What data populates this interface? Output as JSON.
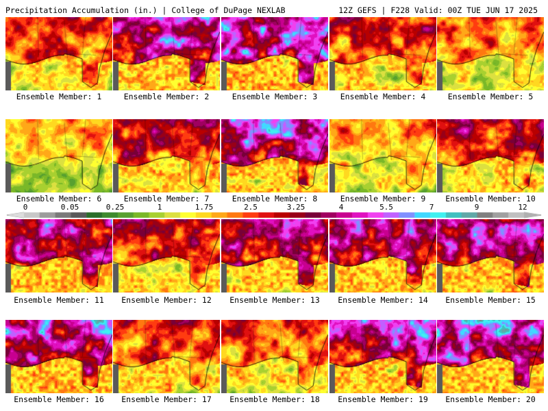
{
  "header": {
    "title": "Precipitation Accumulation (in.) | College of DuPage NEXLAB",
    "run_info": "12Z GEFS | F228 Valid: 00Z TUE JUN 17 2025"
  },
  "colorbar": {
    "ticks": [
      "0",
      "0.05",
      "0.25",
      "1",
      "1.75",
      "2.5",
      "3.25",
      "4",
      "5.5",
      "7",
      "9",
      "12"
    ],
    "colors": [
      "#c8c8c8",
      "#9c9c9c",
      "#7a7a7a",
      "#5a5a5a",
      "#2a6e2a",
      "#3e8a2e",
      "#58a030",
      "#7ab828",
      "#a8d030",
      "#dce040",
      "#ffff30",
      "#ffd820",
      "#ffa818",
      "#ff7810",
      "#ff3c10",
      "#e01010",
      "#b80000",
      "#980018",
      "#780038",
      "#a00060",
      "#c80090",
      "#e010c0",
      "#f040f0",
      "#c060ff",
      "#8090ff",
      "#40d8ff",
      "#40f0f0",
      "#40c0c0",
      "#60a8a8",
      "#808080",
      "#a0a0a0",
      "#c0c0c0"
    ]
  },
  "panels": [
    {
      "label": "Ensemble Member: 1",
      "seed": 11,
      "wet": 0.55
    },
    {
      "label": "Ensemble Member: 2",
      "seed": 23,
      "wet": 0.78
    },
    {
      "label": "Ensemble Member: 3",
      "seed": 37,
      "wet": 0.85
    },
    {
      "label": "Ensemble Member: 4",
      "seed": 41,
      "wet": 0.55
    },
    {
      "label": "Ensemble Member: 5",
      "seed": 53,
      "wet": 0.5
    },
    {
      "label": "Ensemble Member: 6",
      "seed": 67,
      "wet": 0.42
    },
    {
      "label": "Ensemble Member: 7",
      "seed": 71,
      "wet": 0.6
    },
    {
      "label": "Ensemble Member: 8",
      "seed": 83,
      "wet": 0.78
    },
    {
      "label": "Ensemble Member: 9",
      "seed": 97,
      "wet": 0.48
    },
    {
      "label": "Ensemble Member: 10",
      "seed": 101,
      "wet": 0.6
    },
    {
      "label": "Ensemble Member: 11",
      "seed": 113,
      "wet": 0.72
    },
    {
      "label": "Ensemble Member: 12",
      "seed": 127,
      "wet": 0.6
    },
    {
      "label": "Ensemble Member: 13",
      "seed": 131,
      "wet": 0.72
    },
    {
      "label": "Ensemble Member: 14",
      "seed": 149,
      "wet": 0.72
    },
    {
      "label": "Ensemble Member: 15",
      "seed": 157,
      "wet": 0.78
    },
    {
      "label": "Ensemble Member: 16",
      "seed": 163,
      "wet": 0.8
    },
    {
      "label": "Ensemble Member: 17",
      "seed": 173,
      "wet": 0.55
    },
    {
      "label": "Ensemble Member: 18",
      "seed": 181,
      "wet": 0.52
    },
    {
      "label": "Ensemble Member: 19",
      "seed": 191,
      "wet": 0.78
    },
    {
      "label": "Ensemble Member: 20",
      "seed": 197,
      "wet": 0.82
    }
  ]
}
